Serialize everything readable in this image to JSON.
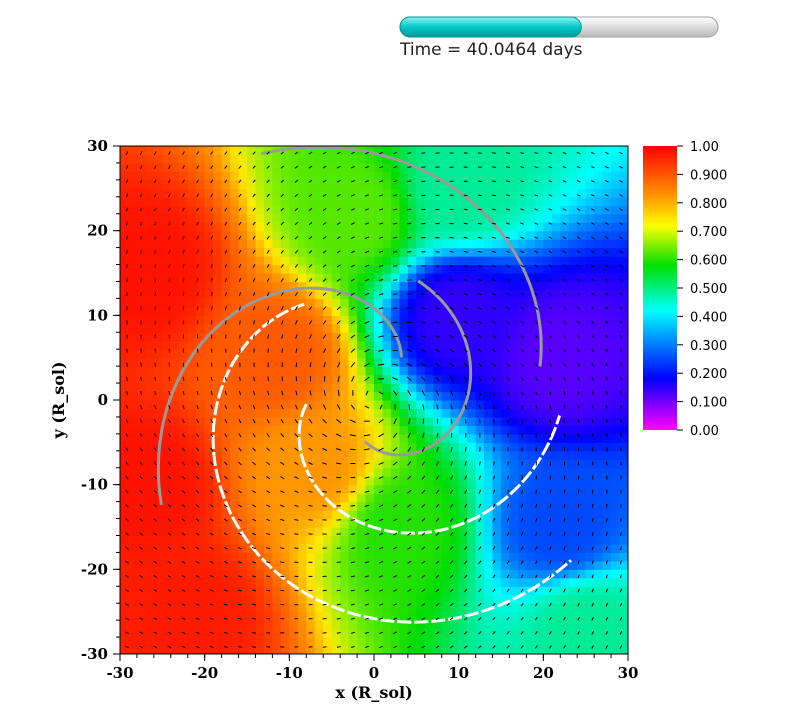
{
  "time_label": "Time = 40.0464 days",
  "time_progress": 0.57,
  "colors": {
    "progress_fill": "#00c8c8",
    "progress_track": "#e8e8e8",
    "contour_white": "#ffffff",
    "contour_gray": "#9a9a9a",
    "arrow": "#000000"
  },
  "chart_data": {
    "type": "heatmap",
    "xlabel": "x (R_sol)",
    "ylabel": "y (R_sol)",
    "xlim": [
      -30,
      30
    ],
    "ylim": [
      -30,
      30
    ],
    "x_ticks": [
      "-30",
      "-20",
      "-10",
      "0",
      "10",
      "20",
      "30"
    ],
    "y_ticks": [
      "-30",
      "-20",
      "-10",
      "0",
      "10",
      "20",
      "30"
    ],
    "x_tick_values": [
      -30,
      -20,
      -10,
      0,
      10,
      20,
      30
    ],
    "y_tick_values": [
      -30,
      -20,
      -10,
      0,
      10,
      20,
      30
    ],
    "colorbar": {
      "range": [
        0,
        1
      ],
      "colormap": "rainbow",
      "labels": [
        "1.00",
        "0.900",
        "0.800",
        "0.700",
        "0.600",
        "0.500",
        "0.400",
        "0.300",
        "0.200",
        "0.100",
        "0.00"
      ],
      "label_values": [
        1.0,
        0.9,
        0.8,
        0.7,
        0.6,
        0.5,
        0.4,
        0.3,
        0.2,
        0.1,
        0.0
      ]
    },
    "field_regions": [
      {
        "x": -27,
        "y": 15,
        "value": 0.98
      },
      {
        "x": -27,
        "y": -10,
        "value": 0.98
      },
      {
        "x": -22,
        "y": -25,
        "value": 0.97
      },
      {
        "x": -12,
        "y": 5,
        "value": 0.9
      },
      {
        "x": -7,
        "y": -8,
        "value": 0.82
      },
      {
        "x": -2,
        "y": 22,
        "value": 0.65
      },
      {
        "x": 3,
        "y": -15,
        "value": 0.62
      },
      {
        "x": 10,
        "y": 25,
        "value": 0.5
      },
      {
        "x": 10,
        "y": 10,
        "value": 0.18
      },
      {
        "x": 22,
        "y": 5,
        "value": 0.15
      },
      {
        "x": 22,
        "y": -15,
        "value": 0.28
      },
      {
        "x": 25,
        "y": -27,
        "value": 0.5
      }
    ]
  }
}
